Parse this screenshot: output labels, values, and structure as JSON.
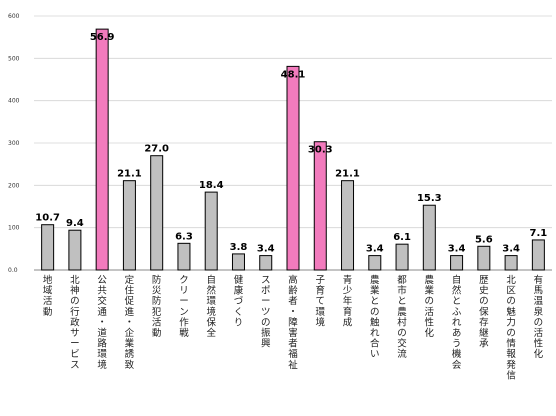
{
  "chart_data": {
    "type": "bar",
    "ylim": [
      0,
      600
    ],
    "yticks": [
      0,
      100,
      200,
      300,
      400,
      500,
      600
    ],
    "ytick_labels": [
      "0.0",
      "100",
      "200",
      "300",
      "400",
      "500",
      "600"
    ],
    "grid": "horizontal",
    "categories": [
      "地域活動",
      "北神の行政サービス",
      "公共交通・道路環境",
      "定住促進・企業誘致",
      "防災防犯活動",
      "クリーン作戦",
      "自然環境保全",
      "健康づくり",
      "スポーツの振興",
      "高齢者・障害者福祉",
      "子育て環境",
      "青少年育成",
      "農業との触れ合い",
      "都市と農村の交流",
      "農業の活性化",
      "自然とふれあう機会",
      "歴史の保存継承",
      "北区の魅力の情報発信",
      "有馬温泉の活性化"
    ],
    "values": [
      107,
      94,
      569,
      211,
      270,
      63,
      184,
      38,
      34,
      481,
      303,
      211,
      34,
      61,
      153,
      34,
      56,
      34,
      71
    ],
    "data_labels": [
      "10.7",
      "9.4",
      "56.9",
      "21.1",
      "27.0",
      "6.3",
      "18.4",
      "3.8",
      "3.4",
      "48.1",
      "30.3",
      "21.1",
      "3.4",
      "6.1",
      "15.3",
      "3.4",
      "5.6",
      "3.4",
      "7.1"
    ],
    "highlight": [
      false,
      false,
      true,
      false,
      false,
      false,
      false,
      false,
      false,
      true,
      true,
      false,
      false,
      false,
      false,
      false,
      false,
      false,
      false
    ],
    "colors": {
      "bar": "#c0c0c0",
      "highlight": "#f27bbd",
      "stroke": "#000000",
      "grid": "#d4d4d4",
      "axis": "#888888"
    }
  }
}
